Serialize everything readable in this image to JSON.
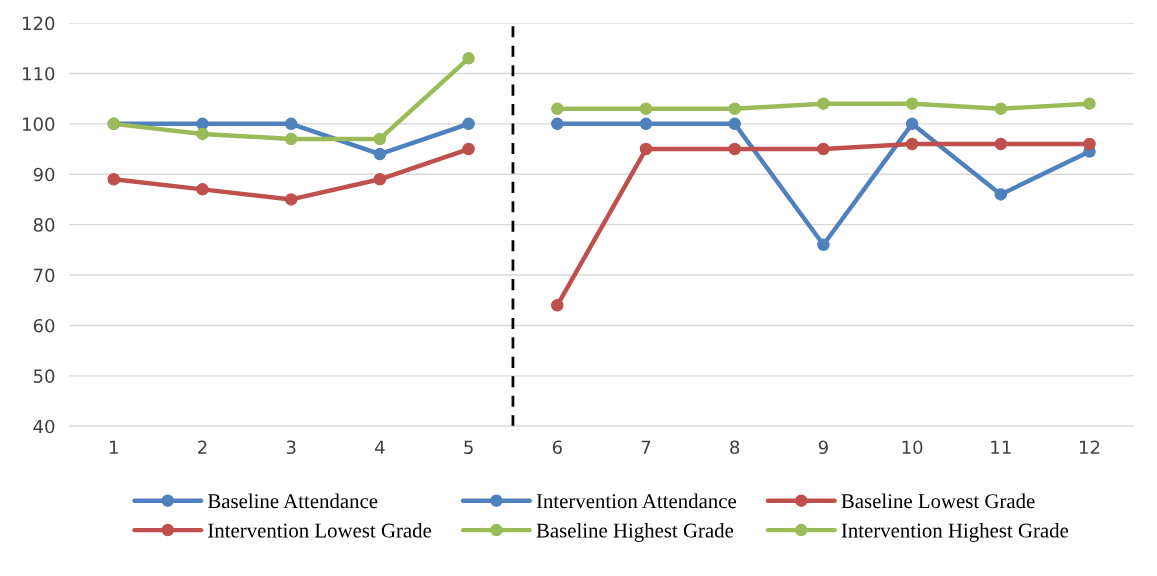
{
  "chart_data": {
    "type": "line",
    "xlim": [
      0.5,
      12.5
    ],
    "xticks": [
      1,
      2,
      3,
      4,
      5,
      6,
      7,
      8,
      9,
      10,
      11,
      12
    ],
    "ylim": [
      40,
      120
    ],
    "yticks": [
      40,
      50,
      60,
      70,
      80,
      90,
      100,
      110,
      120
    ],
    "grid": "y",
    "legend": "bottom",
    "marker": "circle",
    "line_style": "solid",
    "ref_lines": [
      {
        "axis": "x",
        "value": 5.5,
        "label": null,
        "color": "#000000",
        "line_style": "dashed"
      }
    ],
    "series": [
      {
        "name": "Baseline Attendance",
        "color": "#4f81bd",
        "x": [
          1,
          2,
          3,
          4,
          5
        ],
        "values": [
          100,
          100,
          100,
          94,
          100
        ]
      },
      {
        "name": "Intervention Attendance",
        "color": "#4f81bd",
        "x": [
          6,
          7,
          8,
          9,
          10,
          11,
          12
        ],
        "values": [
          100,
          100,
          100,
          76,
          100,
          86,
          94.5
        ]
      },
      {
        "name": "Baseline Lowest Grade",
        "color": "#c0504d",
        "x": [
          1,
          2,
          3,
          4,
          5
        ],
        "values": [
          89,
          87,
          85,
          89,
          95
        ]
      },
      {
        "name": "Intervention Lowest Grade",
        "color": "#c0504d",
        "x": [
          6,
          7,
          8,
          9,
          10,
          11,
          12
        ],
        "values": [
          64,
          95,
          95,
          95,
          96,
          96,
          96
        ]
      },
      {
        "name": "Baseline Highest Grade",
        "color": "#9bbb59",
        "x": [
          1,
          2,
          3,
          4,
          5
        ],
        "values": [
          100,
          98,
          97,
          97,
          113
        ]
      },
      {
        "name": "Intervention Highest Grade",
        "color": "#9bbb59",
        "x": [
          6,
          7,
          8,
          9,
          10,
          11,
          12
        ],
        "values": [
          103,
          103,
          103,
          104,
          104,
          103,
          104
        ]
      }
    ]
  }
}
